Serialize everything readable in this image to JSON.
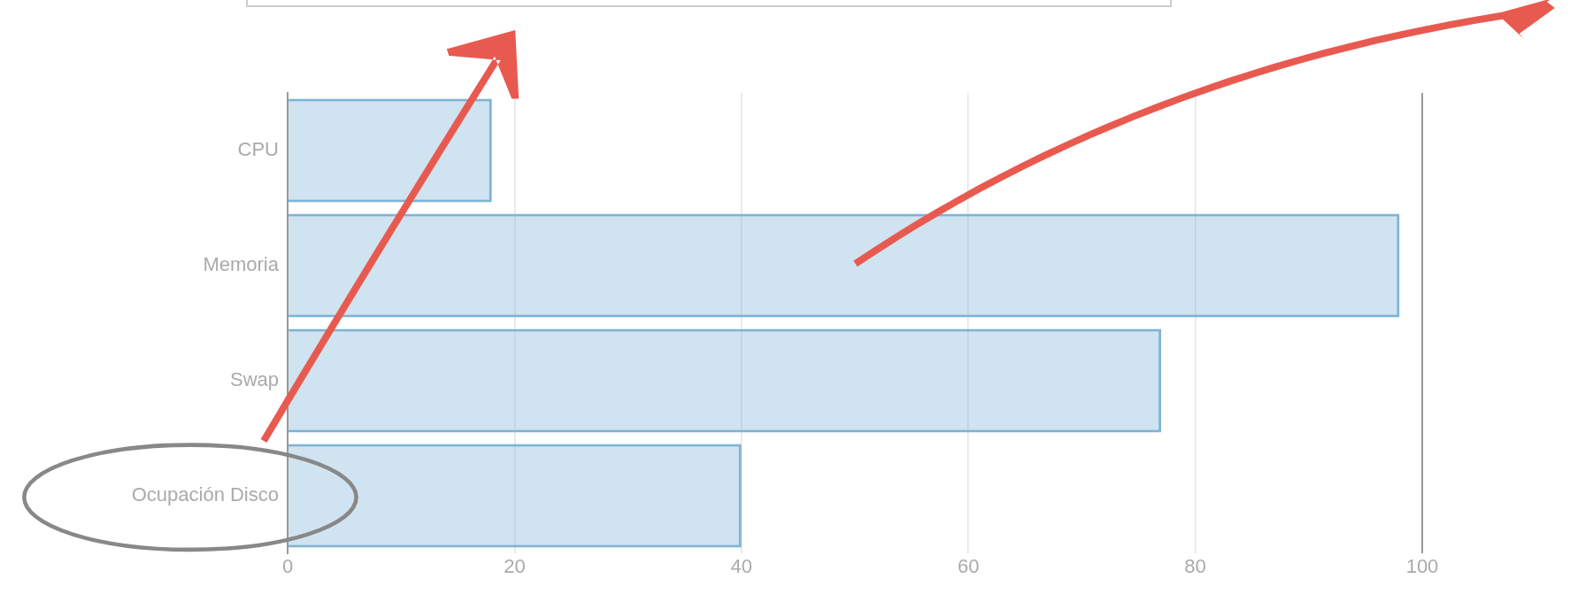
{
  "chart_data": {
    "type": "bar",
    "orientation": "horizontal",
    "categories": [
      "CPU",
      "Memoria",
      "Swap",
      "Ocupación Disco"
    ],
    "values": [
      18,
      98,
      77,
      40
    ],
    "color": "#7fb3d5",
    "xlim": [
      0,
      100
    ],
    "xticks": [
      0,
      20,
      40,
      60,
      80,
      100
    ],
    "grid": "x"
  }
}
